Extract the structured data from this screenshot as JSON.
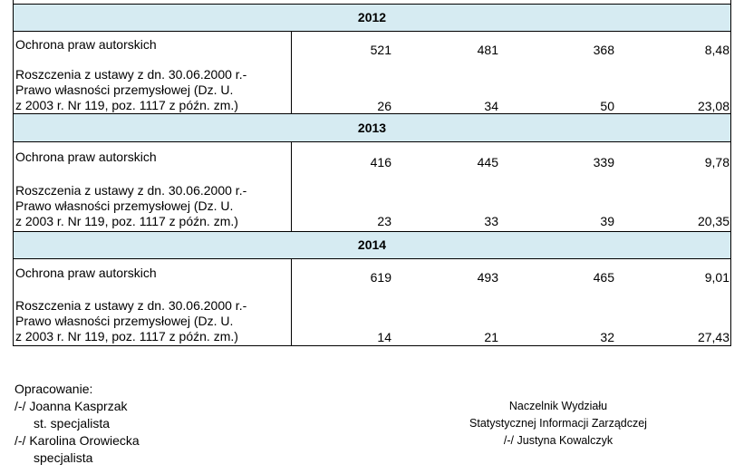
{
  "years": [
    {
      "year": "2012",
      "rows": [
        {
          "label": [
            "Ochrona praw autorskich"
          ],
          "values": [
            "521",
            "481",
            "368",
            "8,48"
          ]
        },
        {
          "label": [
            "Roszczenia z ustawy z dn. 30.06.2000 r.-",
            "Prawo własności przemysłowej (Dz. U.",
            "z 2003 r. Nr 119, poz. 1117 z późn. zm.)"
          ],
          "values": [
            "26",
            "34",
            "50",
            "23,08"
          ]
        }
      ]
    },
    {
      "year": "2013",
      "rows": [
        {
          "label": [
            "Ochrona praw autorskich"
          ],
          "values": [
            "416",
            "445",
            "339",
            "9,78"
          ]
        },
        {
          "label": [
            "Roszczenia z ustawy z dn. 30.06.2000 r.-",
            "Prawo własności przemysłowej (Dz. U.",
            "z 2003 r. Nr 119, poz. 1117 z późn. zm.)"
          ],
          "values": [
            "23",
            "33",
            "39",
            "20,35"
          ]
        }
      ]
    },
    {
      "year": "2014",
      "rows": [
        {
          "label": [
            "Ochrona praw autorskich"
          ],
          "values": [
            "619",
            "493",
            "465",
            "9,01"
          ]
        },
        {
          "label": [
            "Roszczenia z ustawy z dn. 30.06.2000 r.-",
            "Prawo własności przemysłowej (Dz. U.",
            "z 2003 r. Nr 119, poz. 1117 z późn. zm.)"
          ],
          "values": [
            "14",
            "21",
            "32",
            "27,43"
          ]
        }
      ]
    }
  ],
  "footer": {
    "prepared_label": "Opracowanie:",
    "authors": [
      {
        "name": "/-/ Joanna Kasprzak",
        "role": "st. specjalista"
      },
      {
        "name": "/-/ Karolina Orowiecka",
        "role": "specjalista"
      }
    ],
    "signature": {
      "title_line1": "Naczelnik Wydziału",
      "title_line2": "Statystycznej Informacji Zarządczej",
      "name": "/-/ Justyna Kowalczyk"
    }
  },
  "colors": {
    "year_band": "#d6ebf2",
    "grid": "#000000"
  }
}
